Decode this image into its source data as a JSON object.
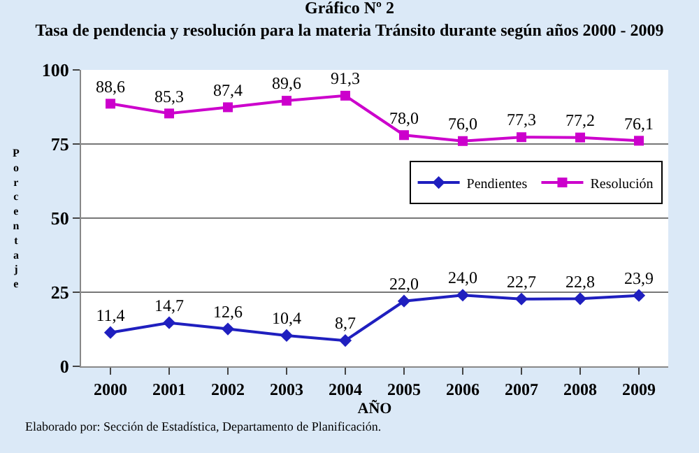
{
  "chart_data": {
    "type": "line",
    "title": "Gráfico Nº 2",
    "subtitle": "Tasa de pendencia y resolución para la materia Tránsito durante según años 2000 - 2009",
    "xlabel": "AÑO",
    "ylabel": "Porcentaje",
    "categories": [
      "2000",
      "2001",
      "2002",
      "2003",
      "2004",
      "2005",
      "2006",
      "2007",
      "2008",
      "2009"
    ],
    "series": [
      {
        "name": "Pendientes",
        "color": "#1f1fbf",
        "marker": "diamond",
        "values": [
          11.4,
          14.7,
          12.6,
          10.4,
          8.7,
          22.0,
          24.0,
          22.7,
          22.8,
          23.9
        ],
        "value_labels": [
          "11,4",
          "14,7",
          "12,6",
          "10,4",
          "8,7",
          "22,0",
          "24,0",
          "22,7",
          "22,8",
          "23,9"
        ]
      },
      {
        "name": "Resolución",
        "color": "#cc00cc",
        "marker": "square",
        "values": [
          88.6,
          85.3,
          87.4,
          89.6,
          91.3,
          78.0,
          76.0,
          77.3,
          77.2,
          76.1
        ],
        "value_labels": [
          "88,6",
          "85,3",
          "87,4",
          "89,6",
          "91,3",
          "78,0",
          "76,0",
          "77,3",
          "77,2",
          "76,1"
        ]
      }
    ],
    "ylim": [
      0,
      100
    ],
    "yticks": [
      0,
      25,
      50,
      75,
      100
    ],
    "grid": "y",
    "legend": "right",
    "line_style": "solid",
    "annotations": [
      "Elaborado por: Sección de Estadística, Departamento de Planificación."
    ]
  }
}
